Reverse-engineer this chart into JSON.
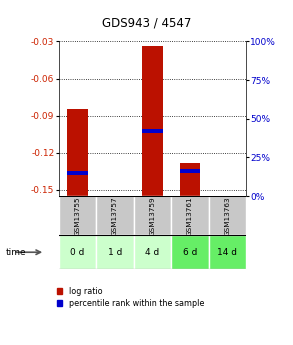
{
  "title": "GDS943 / 4547",
  "samples": [
    "GSM13755",
    "GSM13757",
    "GSM13759",
    "GSM13761",
    "GSM13763"
  ],
  "time_labels": [
    "0 d",
    "1 d",
    "4 d",
    "6 d",
    "14 d"
  ],
  "log_ratios": [
    -0.085,
    0.0,
    -0.034,
    -0.128,
    0.0
  ],
  "bar_bottom": -0.155,
  "percentile_ranks": [
    15,
    0,
    42,
    16,
    0
  ],
  "ylim": [
    -0.155,
    -0.03
  ],
  "yticks_left": [
    -0.15,
    -0.12,
    -0.09,
    -0.06,
    -0.03
  ],
  "yticks_right": [
    0,
    25,
    50,
    75,
    100
  ],
  "bar_color": "#bb1100",
  "pct_color": "#0000cc",
  "grid_color": "#888888",
  "sample_bg": "#c8c8c8",
  "time_bg_colors": [
    "#ccffcc",
    "#ccffcc",
    "#ccffcc",
    "#66ee66",
    "#66ee66"
  ],
  "left_label_color": "#cc2200",
  "right_label_color": "#0000cc",
  "bar_width": 0.55,
  "legend_items": [
    "log ratio",
    "percentile rank within the sample"
  ],
  "fig_width": 2.93,
  "fig_height": 3.45
}
